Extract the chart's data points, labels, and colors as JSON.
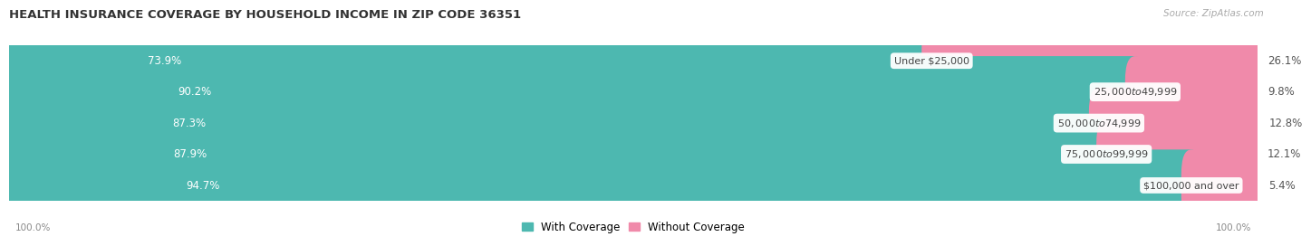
{
  "title": "HEALTH INSURANCE COVERAGE BY HOUSEHOLD INCOME IN ZIP CODE 36351",
  "source": "Source: ZipAtlas.com",
  "categories": [
    "Under $25,000",
    "$25,000 to $49,999",
    "$50,000 to $74,999",
    "$75,000 to $99,999",
    "$100,000 and over"
  ],
  "with_coverage": [
    73.9,
    90.2,
    87.3,
    87.9,
    94.7
  ],
  "without_coverage": [
    26.1,
    9.8,
    12.8,
    12.1,
    5.4
  ],
  "coverage_color": "#4db8b0",
  "no_coverage_color": "#f08aaa",
  "row_bg_even": "#f5f5f5",
  "row_bg_odd": "#ebebeb",
  "title_fontsize": 9.5,
  "source_fontsize": 7.5,
  "bar_label_fontsize": 8.5,
  "category_fontsize": 8,
  "legend_fontsize": 8.5,
  "axis_label_fontsize": 7.5,
  "figsize": [
    14.06,
    2.69
  ],
  "dpi": 100,
  "left_pct_label": "100.0%",
  "right_pct_label": "100.0%"
}
